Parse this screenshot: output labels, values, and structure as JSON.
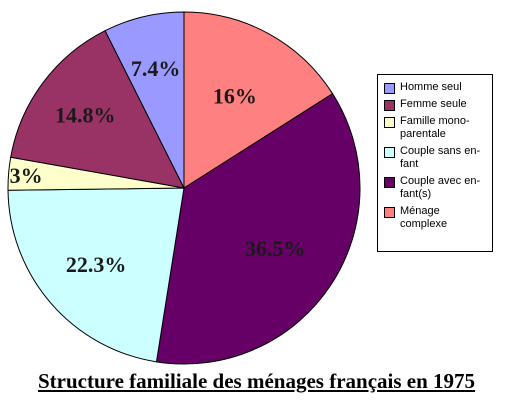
{
  "chart_data": {
    "type": "pie",
    "title": "Structure familiale des ménages français en 1975",
    "slices": [
      {
        "label": "Homme seul",
        "value": 7.4,
        "display": "7.4%",
        "color": "#9999ff"
      },
      {
        "label": "Femme seule",
        "value": 14.8,
        "display": "14.8%",
        "color": "#993366"
      },
      {
        "label": "Famille mono-\nparentale",
        "value": 3,
        "display": "3%",
        "color": "#ffffcc"
      },
      {
        "label": "Couple sans en-\nfant",
        "value": 22.3,
        "display": "22.3%",
        "color": "#ccffff"
      },
      {
        "label": "Couple avec en-\nfant(s)",
        "value": 36.5,
        "display": "36.5%",
        "color": "#660066"
      },
      {
        "label": "Ménage\ncomplexe",
        "value": 16,
        "display": "16%",
        "color": "#ff8080"
      }
    ],
    "legend_placement": "right"
  }
}
